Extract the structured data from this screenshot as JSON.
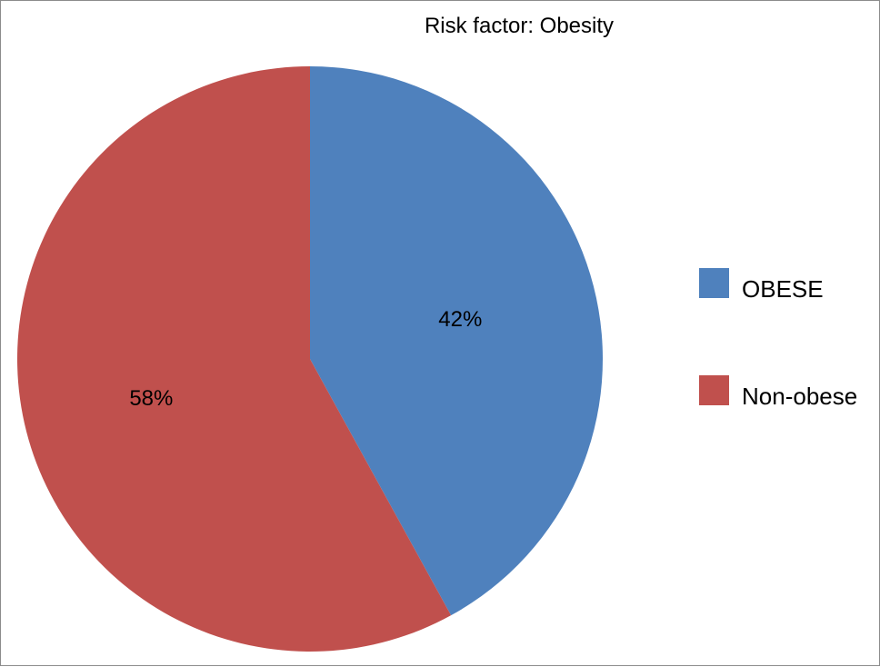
{
  "chart_data": {
    "type": "pie",
    "title": "Risk factor: Obesity",
    "slices": [
      {
        "label": "OBESE",
        "value": 42,
        "value_label": "42%",
        "color": "#4f81bd"
      },
      {
        "label": "Non-obese",
        "value": 58,
        "value_label": "58%",
        "color": "#c0504d"
      }
    ],
    "start_angle": "12 o'clock",
    "direction": "clockwise",
    "legend_position": "right"
  }
}
